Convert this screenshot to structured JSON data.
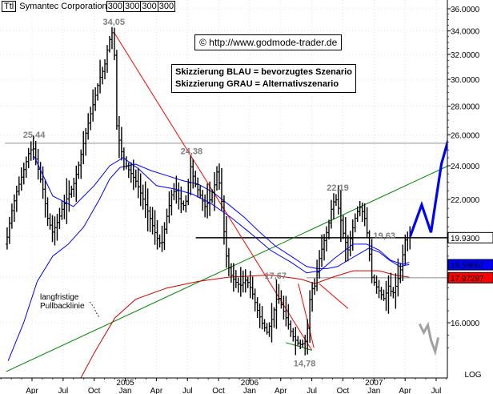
{
  "chart_data": {
    "type": "ohlc",
    "title": "Symantec Corporation",
    "symbol": "Ttl",
    "indicator_labels": [
      "300",
      "300",
      "300",
      "300"
    ],
    "copyright": "© http://www.godmode-trader.de",
    "legend_lines": [
      "Skizzierung BLAU = bevorzugtes Szenario",
      "Skizzierung GRAU = Alternativszenario"
    ],
    "yscale": "log",
    "ylabel": "LOG",
    "ylim": [
      13.9,
      36.5
    ],
    "y_ticks": [
      16.0,
      18.0,
      20.0,
      22.0,
      24.0,
      26.0,
      28.0,
      30.0,
      32.0,
      34.0,
      36.0
    ],
    "y_tick_labels": [
      "16.0000",
      "18.0000",
      "20.0000",
      "22.0000",
      "24.0000",
      "26.0000",
      "28.0000",
      "30.0000",
      "32.0000",
      "34.0000",
      "36.0000"
    ],
    "x_ticks": [
      {
        "t": 1.0,
        "label": "Apr"
      },
      {
        "t": 4.0,
        "label": "Jul"
      },
      {
        "t": 7.0,
        "label": "Oct"
      },
      {
        "t": 10.0,
        "label": "Jan",
        "year": "2005"
      },
      {
        "t": 13.0,
        "label": "Apr"
      },
      {
        "t": 16.0,
        "label": "Jul"
      },
      {
        "t": 19.0,
        "label": "Oct"
      },
      {
        "t": 22.0,
        "label": "Jan",
        "year": "2006"
      },
      {
        "t": 25.0,
        "label": "Apr"
      },
      {
        "t": 28.0,
        "label": "Jul"
      },
      {
        "t": 31.0,
        "label": "Oct"
      },
      {
        "t": 34.0,
        "label": "Jan",
        "year": "2007"
      },
      {
        "t": 37.0,
        "label": "Apr"
      },
      {
        "t": 40.0,
        "label": "Jul"
      }
    ],
    "x_range": [
      -1.6,
      41.5
    ],
    "price_path": [
      [
        -1.4,
        19.6
      ],
      [
        -0.9,
        21.2
      ],
      [
        -0.4,
        22.4
      ],
      [
        0.2,
        23.5
      ],
      [
        0.8,
        24.8
      ],
      [
        1.2,
        25.2
      ],
      [
        1.7,
        23.8
      ],
      [
        2.2,
        22.5
      ],
      [
        2.6,
        21.0
      ],
      [
        3.1,
        20.2
      ],
      [
        3.6,
        20.8
      ],
      [
        4.1,
        21.6
      ],
      [
        4.6,
        22.2
      ],
      [
        5.1,
        22.8
      ],
      [
        5.6,
        24.0
      ],
      [
        6.1,
        25.5
      ],
      [
        6.6,
        27.0
      ],
      [
        7.1,
        28.4
      ],
      [
        7.6,
        30.0
      ],
      [
        8.1,
        31.0
      ],
      [
        8.5,
        33.0
      ],
      [
        8.9,
        34.0
      ],
      [
        9.1,
        31.5
      ],
      [
        9.3,
        26.5
      ],
      [
        9.7,
        25.0
      ],
      [
        10.2,
        24.0
      ],
      [
        10.7,
        23.5
      ],
      [
        11.2,
        23.0
      ],
      [
        11.7,
        22.2
      ],
      [
        12.2,
        21.5
      ],
      [
        12.6,
        20.8
      ],
      [
        13.1,
        20.0
      ],
      [
        13.6,
        19.5
      ],
      [
        14.1,
        21.0
      ],
      [
        14.6,
        22.3
      ],
      [
        15.0,
        22.6
      ],
      [
        15.4,
        21.8
      ],
      [
        15.9,
        21.6
      ],
      [
        16.4,
        24.0
      ],
      [
        16.8,
        23.0
      ],
      [
        17.3,
        22.3
      ],
      [
        17.8,
        21.6
      ],
      [
        18.3,
        22.0
      ],
      [
        18.8,
        23.0
      ],
      [
        19.0,
        23.8
      ],
      [
        19.4,
        22.0
      ],
      [
        19.8,
        19.2
      ],
      [
        20.2,
        18.2
      ],
      [
        20.7,
        17.8
      ],
      [
        21.2,
        17.6
      ],
      [
        21.8,
        17.9
      ],
      [
        22.3,
        17.4
      ],
      [
        22.8,
        16.6
      ],
      [
        23.3,
        16.0
      ],
      [
        23.8,
        15.6
      ],
      [
        24.3,
        16.2
      ],
      [
        24.8,
        17.2
      ],
      [
        25.3,
        16.6
      ],
      [
        25.8,
        16.0
      ],
      [
        26.2,
        15.5
      ],
      [
        26.7,
        15.2
      ],
      [
        27.1,
        15.1
      ],
      [
        27.6,
        15.3
      ],
      [
        28.0,
        17.4
      ],
      [
        28.4,
        17.6
      ],
      [
        28.8,
        18.8
      ],
      [
        29.2,
        19.6
      ],
      [
        29.7,
        20.5
      ],
      [
        30.1,
        21.8
      ],
      [
        30.5,
        22.0
      ],
      [
        30.8,
        21.2
      ],
      [
        31.2,
        20.0
      ],
      [
        31.6,
        19.3
      ],
      [
        32.0,
        20.3
      ],
      [
        32.4,
        21.2
      ],
      [
        32.8,
        21.6
      ],
      [
        33.2,
        21.0
      ],
      [
        33.5,
        20.0
      ],
      [
        33.9,
        18.0
      ],
      [
        34.3,
        17.6
      ],
      [
        34.7,
        17.3
      ],
      [
        35.1,
        17.0
      ],
      [
        35.5,
        17.6
      ],
      [
        35.9,
        17.2
      ],
      [
        36.3,
        17.7
      ],
      [
        36.7,
        18.4
      ],
      [
        37.1,
        19.8
      ],
      [
        37.5,
        20.0
      ]
    ],
    "sma_short": [
      [
        1.2,
        24.6
      ],
      [
        3.0,
        22.2
      ],
      [
        5.0,
        21.6
      ],
      [
        7.0,
        22.8
      ],
      [
        8.5,
        24.0
      ],
      [
        9.8,
        24.5
      ],
      [
        11.3,
        23.8
      ],
      [
        13.0,
        22.8
      ],
      [
        14.8,
        22.6
      ],
      [
        16.5,
        22.3
      ],
      [
        18.2,
        21.8
      ],
      [
        20.2,
        21.0
      ],
      [
        22.0,
        20.2
      ],
      [
        24.0,
        19.3
      ],
      [
        26.0,
        18.7
      ],
      [
        27.5,
        18.2
      ],
      [
        28.8,
        18.3
      ],
      [
        30.2,
        18.9
      ],
      [
        32.0,
        19.6
      ],
      [
        33.3,
        19.6
      ],
      [
        34.5,
        19.3
      ],
      [
        35.6,
        18.8
      ],
      [
        36.8,
        18.6
      ],
      [
        37.4,
        18.7
      ]
    ],
    "sma_long": [
      [
        -1.3,
        14.5
      ],
      [
        0.2,
        16.0
      ],
      [
        1.5,
        17.8
      ],
      [
        3.0,
        19.0
      ],
      [
        4.5,
        19.6
      ],
      [
        6.0,
        20.5
      ],
      [
        7.5,
        22.0
      ],
      [
        8.5,
        23.2
      ],
      [
        9.5,
        23.9
      ],
      [
        11.0,
        24.1
      ],
      [
        12.5,
        23.7
      ],
      [
        14.0,
        23.4
      ],
      [
        15.5,
        23.1
      ],
      [
        17.0,
        22.9
      ],
      [
        18.5,
        22.4
      ],
      [
        20.0,
        21.7
      ],
      [
        21.5,
        21.0
      ],
      [
        23.0,
        20.2
      ],
      [
        24.5,
        19.5
      ],
      [
        26.0,
        19.0
      ],
      [
        27.5,
        18.5
      ],
      [
        28.5,
        18.4
      ],
      [
        29.5,
        18.4
      ],
      [
        30.5,
        18.5
      ],
      [
        31.5,
        18.8
      ],
      [
        32.5,
        19.1
      ],
      [
        33.5,
        19.4
      ],
      [
        34.5,
        19.2
      ],
      [
        35.5,
        18.8
      ],
      [
        36.5,
        18.5
      ],
      [
        37.4,
        18.6
      ]
    ],
    "lines": [
      {
        "name": "support-green",
        "color": "#008000",
        "points": [
          [
            -1.5,
            14.1
          ],
          [
            41.5,
            24.1
          ]
        ]
      },
      {
        "name": "downtrend-red",
        "color": "#ff0000",
        "points": [
          [
            8.9,
            33.9
          ],
          [
            28.0,
            14.9
          ]
        ]
      },
      {
        "name": "red-curve",
        "color": "#cc0000",
        "points": [
          [
            5.6,
            13.8
          ],
          [
            7.0,
            14.8
          ],
          [
            9.0,
            16.2
          ],
          [
            11.0,
            17.0
          ],
          [
            14.0,
            17.5
          ],
          [
            17.0,
            17.8
          ],
          [
            20.0,
            18.0
          ],
          [
            24.0,
            18.1
          ],
          [
            27.0,
            17.9
          ],
          [
            28.3,
            17.7
          ],
          [
            30.0,
            18.0
          ],
          [
            32.0,
            18.3
          ],
          [
            34.5,
            18.3
          ],
          [
            36.0,
            18.1
          ],
          [
            37.4,
            18.0
          ]
        ]
      },
      {
        "name": "red-fan-left",
        "color": "#ff0000",
        "points": [
          [
            26.7,
            17.7
          ],
          [
            28.2,
            15.0
          ]
        ]
      },
      {
        "name": "red-fan-right",
        "color": "#ff0000",
        "points": [
          [
            28.7,
            17.7
          ],
          [
            31.5,
            16.6
          ]
        ]
      },
      {
        "name": "low-green",
        "color": "#008000",
        "points": [
          [
            25.5,
            15.2
          ],
          [
            28.0,
            14.9
          ]
        ]
      }
    ],
    "horizontal_levels": [
      {
        "name": "resistance-2544",
        "value": 25.44,
        "from": -1.6,
        "to": 41.5,
        "color": "#909090",
        "width": 1
      },
      {
        "name": "support-1993",
        "value": 19.93,
        "from": 16.8,
        "to": 41.5,
        "color": "#000000",
        "width": 1.5
      },
      {
        "name": "support-1797",
        "value": 17.97,
        "from": 27.5,
        "to": 41.5,
        "color": "#909090",
        "width": 1
      }
    ],
    "scenario_blue": [
      [
        37.5,
        20.0
      ],
      [
        38.6,
        21.7
      ],
      [
        39.5,
        20.2
      ],
      [
        40.5,
        24.1
      ],
      [
        41.1,
        25.5
      ],
      [
        41.5,
        24.6
      ]
    ],
    "scenario_gray": [
      [
        38.4,
        15.95
      ],
      [
        38.8,
        15.6
      ],
      [
        39.2,
        15.9
      ],
      [
        39.5,
        15.3
      ],
      [
        39.9,
        14.85
      ],
      [
        40.2,
        15.4
      ]
    ],
    "annotations": [
      {
        "text": "34,05",
        "t": 8.9,
        "y": 34.05
      },
      {
        "text": "25,44",
        "t": 1.2,
        "y": 25.44
      },
      {
        "text": "24,38",
        "t": 16.4,
        "y": 24.38
      },
      {
        "text": "22,19",
        "t": 30.5,
        "y": 22.19
      },
      {
        "text": "19,63",
        "t": 35.0,
        "y": 19.63
      },
      {
        "text": "17,67",
        "t": 24.5,
        "y": 17.67
      },
      {
        "text": "14,78",
        "t": 27.3,
        "y": 14.78
      }
    ],
    "note_lines": [
      "langfristige",
      "Pullbacklinie"
    ],
    "price_badges": [
      {
        "value": 19.93,
        "label": "19.9300",
        "bg": "#ffffff",
        "fg": "#000000"
      },
      {
        "value": 18.58667,
        "label": "18.58667",
        "bg": "#0000ff",
        "fg": "#ffffff"
      },
      {
        "value": 17.97297,
        "label": "17.97297",
        "bg": "#ff0000",
        "fg": "#ffffff"
      }
    ],
    "colors": {
      "bars": "#000000",
      "sma_short": "#0000ff",
      "sma_long": "#ff0000",
      "scenario_blue": "#0000ff",
      "scenario_gray": "#a0a0a0",
      "label_gray": "#808080"
    }
  }
}
